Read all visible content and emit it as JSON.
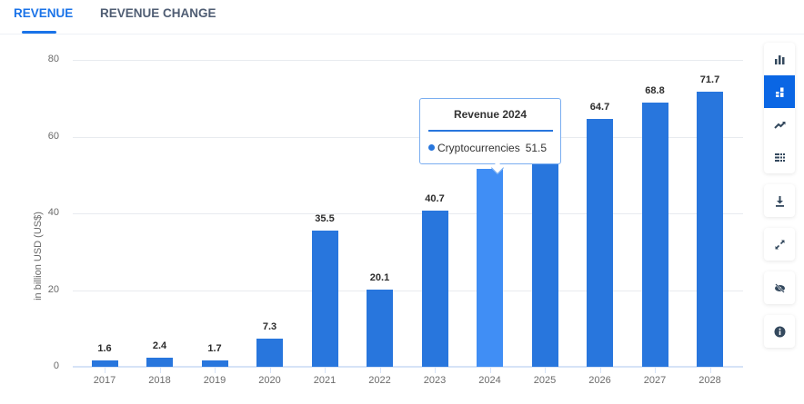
{
  "tabs": [
    {
      "label": "REVENUE",
      "active": true
    },
    {
      "label": "REVENUE CHANGE",
      "active": false
    }
  ],
  "colors": {
    "accent": "#1a73e8",
    "bar": "#2876dd",
    "bar_highlight": "#408ef5",
    "icon": "#34495e"
  },
  "tooltip": {
    "title": "Revenue 2024",
    "series": "Cryptocurrencies",
    "value": "51.5"
  },
  "sidebar": {
    "buttons": [
      {
        "name": "bar-chart",
        "active": false
      },
      {
        "name": "stacked-bar",
        "active": true
      },
      {
        "name": "line-chart",
        "active": false
      },
      {
        "name": "table-view",
        "active": false
      },
      {
        "name": "download",
        "active": false
      },
      {
        "name": "fullscreen",
        "active": false
      },
      {
        "name": "hide",
        "active": false
      },
      {
        "name": "info",
        "active": false
      }
    ]
  },
  "chart_data": {
    "type": "bar",
    "title": "",
    "xlabel": "",
    "ylabel": "in billion USD (US$)",
    "ylim": [
      0,
      80
    ],
    "yticks": [
      "0",
      "20",
      "40",
      "60",
      "80"
    ],
    "categories": [
      "2017",
      "2018",
      "2019",
      "2020",
      "2021",
      "2022",
      "2023",
      "2024",
      "2025",
      "2026",
      "2027",
      "2028"
    ],
    "values": [
      1.6,
      2.4,
      1.7,
      7.3,
      35.5,
      20.1,
      40.7,
      51.5,
      58.5,
      64.7,
      68.8,
      71.7
    ],
    "value_labels": [
      "1.6",
      "2.4",
      "1.7",
      "7.3",
      "35.5",
      "20.1",
      "40.7",
      "",
      "",
      "64.7",
      "68.8",
      "71.7"
    ],
    "series": [
      {
        "name": "Cryptocurrencies",
        "values": [
          1.6,
          2.4,
          1.7,
          7.3,
          35.5,
          20.1,
          40.7,
          51.5,
          58.5,
          64.7,
          68.8,
          71.7
        ]
      }
    ],
    "highlighted_category": "2024",
    "grid": true,
    "legend": "none"
  }
}
